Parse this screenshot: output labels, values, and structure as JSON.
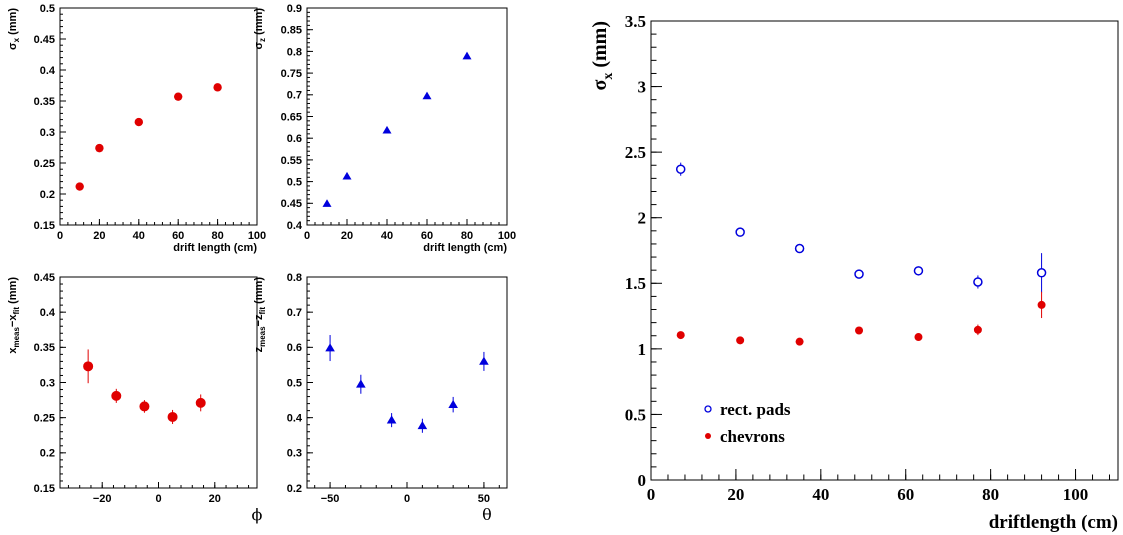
{
  "chart_data": [
    {
      "type": "scatter",
      "xlabel": "drift length (cm)",
      "ylabel": "σx (mm)",
      "ylabel_main": "σ",
      "ylabel_sub": "x",
      "ylabel_unit": " (mm)",
      "xlim": [
        0,
        100
      ],
      "ylim": [
        0.15,
        0.5
      ],
      "xticks": [
        0,
        20,
        40,
        60,
        80,
        100
      ],
      "yticks": [
        0.15,
        0.2,
        0.25,
        0.3,
        0.35,
        0.4,
        0.45,
        0.5
      ],
      "marker": "circle",
      "color": "#e00000",
      "series": [
        {
          "x": [
            10,
            20,
            40,
            60,
            80
          ],
          "y": [
            0.212,
            0.274,
            0.316,
            0.357,
            0.372
          ]
        }
      ]
    },
    {
      "type": "scatter",
      "xlabel": "drift length (cm)",
      "ylabel": "σz (mm)",
      "ylabel_main": "σ",
      "ylabel_sub": "z",
      "ylabel_unit": " (mm)",
      "xlim": [
        0,
        100
      ],
      "ylim": [
        0.4,
        0.9
      ],
      "xticks": [
        0,
        20,
        40,
        60,
        80,
        100
      ],
      "yticks": [
        0.4,
        0.45,
        0.5,
        0.55,
        0.6,
        0.65,
        0.7,
        0.75,
        0.8,
        0.85,
        0.9
      ],
      "marker": "triangle",
      "color": "#0000dd",
      "series": [
        {
          "x": [
            10,
            20,
            40,
            60,
            80
          ],
          "y": [
            0.449,
            0.512,
            0.618,
            0.697,
            0.789
          ]
        }
      ]
    },
    {
      "type": "scatter",
      "xlabel": "ϕ",
      "ylabel": "xmeas−xfit (mm)",
      "ylabel_parts": [
        [
          "x",
          ""
        ],
        [
          "meas",
          "sub"
        ],
        [
          "−x",
          ""
        ],
        [
          "fit",
          "sub"
        ],
        [
          " (mm)",
          ""
        ]
      ],
      "xlim": [
        -35,
        35
      ],
      "ylim": [
        0.15,
        0.45
      ],
      "xticks": [
        -20,
        0,
        20
      ],
      "yticks": [
        0.15,
        0.2,
        0.25,
        0.3,
        0.35,
        0.4,
        0.45
      ],
      "marker": "circle",
      "color": "#e00000",
      "series": [
        {
          "x": [
            -25,
            -15,
            -5,
            5,
            15
          ],
          "y": [
            0.323,
            0.281,
            0.266,
            0.251,
            0.271
          ],
          "err": [
            0.024,
            0.01,
            0.009,
            0.01,
            0.012
          ]
        }
      ]
    },
    {
      "type": "scatter",
      "xlabel": "θ",
      "ylabel": "zmeas−zfit (mm)",
      "ylabel_parts": [
        [
          "z",
          ""
        ],
        [
          "meas",
          "sub"
        ],
        [
          "−z",
          ""
        ],
        [
          "fit",
          "sub"
        ],
        [
          " (mm)",
          ""
        ]
      ],
      "xlim": [
        -65,
        65
      ],
      "ylim": [
        0.2,
        0.8
      ],
      "xticks": [
        -50,
        0,
        50
      ],
      "yticks": [
        0.2,
        0.3,
        0.4,
        0.5,
        0.6,
        0.7,
        0.8
      ],
      "marker": "triangle",
      "color": "#0000dd",
      "series": [
        {
          "x": [
            -50,
            -30,
            -10,
            10,
            30,
            50
          ],
          "y": [
            0.598,
            0.495,
            0.393,
            0.377,
            0.437,
            0.56
          ],
          "err": [
            0.037,
            0.027,
            0.02,
            0.02,
            0.022,
            0.027
          ]
        }
      ]
    },
    {
      "type": "scatter",
      "xlabel": "driftlength (cm)",
      "ylabel": "σx (mm)",
      "ylabel_main": "σ",
      "ylabel_sub": "x",
      "ylabel_unit": " (mm)",
      "xlim": [
        0,
        110
      ],
      "ylim": [
        0,
        3.5
      ],
      "xticks": [
        0,
        20,
        40,
        60,
        80,
        100
      ],
      "yticks": [
        0,
        0.5,
        1,
        1.5,
        2,
        2.5,
        3,
        3.5
      ],
      "legend": [
        "rect. pads",
        "chevrons"
      ],
      "series": [
        {
          "name": "rect. pads",
          "marker": "open-circle",
          "color": "#0000dd",
          "x": [
            7,
            21,
            35,
            49,
            63,
            77,
            92
          ],
          "y": [
            2.37,
            1.89,
            1.765,
            1.57,
            1.595,
            1.51,
            1.58
          ],
          "err": [
            0.05,
            0.02,
            0.02,
            0.02,
            0.02,
            0.05,
            0.15
          ]
        },
        {
          "name": "chevrons",
          "marker": "circle",
          "color": "#e00000",
          "x": [
            7,
            21,
            35,
            49,
            63,
            77,
            92
          ],
          "y": [
            1.105,
            1.065,
            1.055,
            1.14,
            1.09,
            1.145,
            1.335
          ],
          "err": [
            0.02,
            0.02,
            0.02,
            0.02,
            0.02,
            0.04,
            0.1
          ]
        }
      ]
    }
  ]
}
